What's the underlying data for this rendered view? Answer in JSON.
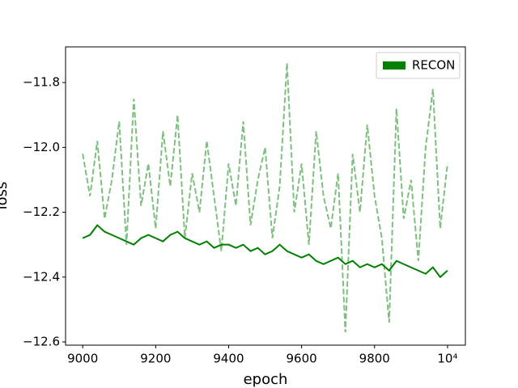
{
  "chart_data": {
    "type": "line",
    "x_label": "epoch",
    "y_label": "loss",
    "x": [
      9000,
      9020,
      9040,
      9060,
      9080,
      9100,
      9120,
      9140,
      9160,
      9180,
      9200,
      9220,
      9240,
      9260,
      9280,
      9300,
      9320,
      9340,
      9360,
      9380,
      9400,
      9420,
      9440,
      9460,
      9480,
      9500,
      9520,
      9540,
      9560,
      9580,
      9600,
      9620,
      9640,
      9660,
      9680,
      9700,
      9720,
      9740,
      9760,
      9780,
      9800,
      9820,
      9840,
      9860,
      9880,
      9900,
      9920,
      9940,
      9960,
      9980,
      10000
    ],
    "series": [
      {
        "color": "#7fbf7f",
        "linestyle": "dashed",
        "values": [
          -12.02,
          -12.15,
          -11.98,
          -12.22,
          -12.1,
          -11.92,
          -12.3,
          -11.85,
          -12.18,
          -12.05,
          -12.25,
          -11.95,
          -12.12,
          -11.9,
          -12.28,
          -12.08,
          -12.2,
          -11.98,
          -12.15,
          -12.32,
          -12.05,
          -12.18,
          -11.92,
          -12.24,
          -12.1,
          -12.0,
          -12.28,
          -12.12,
          -11.74,
          -12.2,
          -12.05,
          -12.3,
          -11.95,
          -12.15,
          -12.25,
          -12.08,
          -12.57,
          -12.02,
          -12.2,
          -11.93,
          -12.15,
          -12.28,
          -12.54,
          -11.88,
          -12.22,
          -12.1,
          -12.35,
          -12.0,
          -11.82,
          -12.25,
          -12.05
        ]
      },
      {
        "name": "RECON",
        "color": "#008000",
        "linestyle": "solid",
        "values": [
          -12.28,
          -12.27,
          -12.24,
          -12.26,
          -12.27,
          -12.28,
          -12.29,
          -12.3,
          -12.28,
          -12.27,
          -12.28,
          -12.29,
          -12.27,
          -12.26,
          -12.28,
          -12.29,
          -12.3,
          -12.29,
          -12.31,
          -12.3,
          -12.3,
          -12.31,
          -12.3,
          -12.32,
          -12.31,
          -12.33,
          -12.32,
          -12.3,
          -12.32,
          -12.33,
          -12.34,
          -12.33,
          -12.35,
          -12.36,
          -12.35,
          -12.34,
          -12.36,
          -12.35,
          -12.37,
          -12.36,
          -12.37,
          -12.36,
          -12.38,
          -12.35,
          -12.36,
          -12.37,
          -12.38,
          -12.39,
          -12.37,
          -12.4,
          -12.38
        ]
      }
    ],
    "xlim": [
      8953,
      10049
    ],
    "xticks": [
      9000,
      9200,
      9400,
      9600,
      9800,
      {
        "value": 10000,
        "label": "10⁴"
      }
    ],
    "ylim": [
      -12.61,
      -11.69
    ],
    "yticks": [
      {
        "value": -12.6,
        "label": "−12.6"
      },
      {
        "value": -12.4,
        "label": "−12.4"
      },
      {
        "value": -12.2,
        "label": "−12.2"
      },
      {
        "value": -12.0,
        "label": "−12.0"
      },
      {
        "value": -11.8,
        "label": "−11.8"
      }
    ],
    "legend": "upper right"
  }
}
